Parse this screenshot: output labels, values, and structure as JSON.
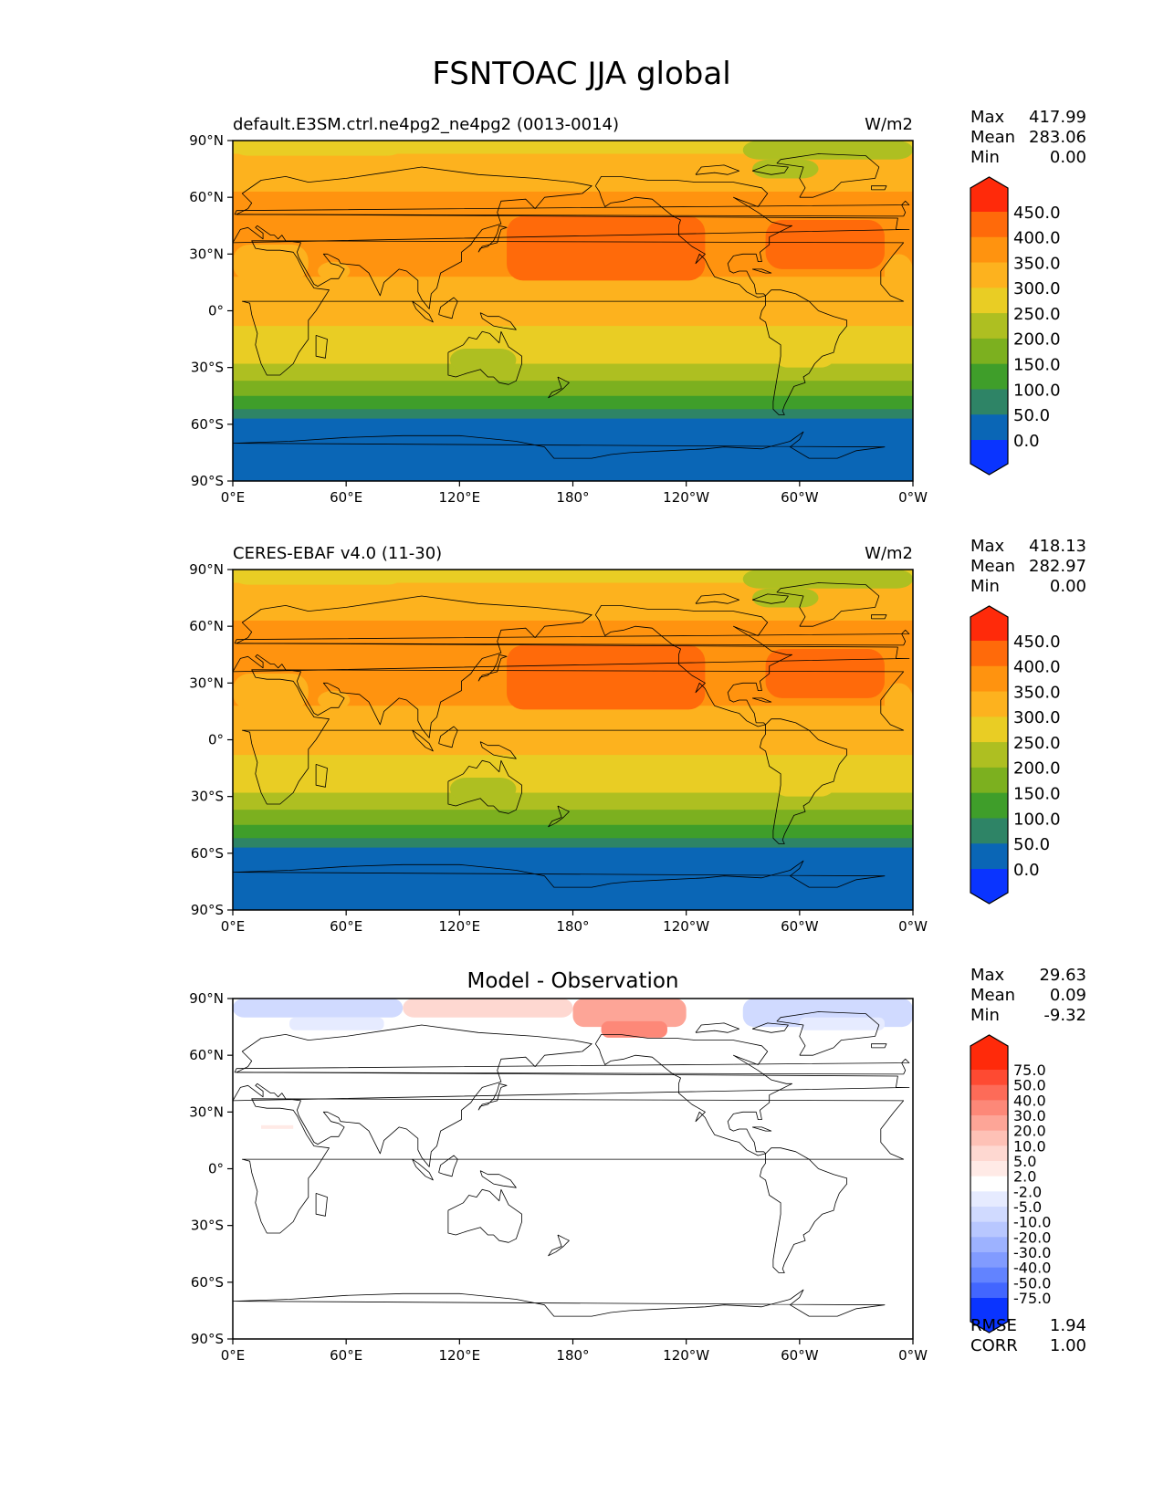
{
  "figure": {
    "title": "FSNTOAC JJA global"
  },
  "axes": {
    "xticks": [
      "0°E",
      "60°E",
      "120°E",
      "180°",
      "120°W",
      "60°W",
      "0°W"
    ],
    "yticks": [
      "90°N",
      "60°N",
      "30°N",
      "0°",
      "30°S",
      "60°S",
      "90°S"
    ]
  },
  "panels": [
    {
      "id": "test",
      "title_left": "default.E3SM.ctrl.ne4pg2_ne4pg2 (0013-0014)",
      "title_center": "",
      "units": "W/m2",
      "stats": [
        {
          "label": "Max",
          "value": "417.99"
        },
        {
          "label": "Mean",
          "value": "283.06"
        },
        {
          "label": "Min",
          "value": "0.00"
        }
      ],
      "extra_stats": []
    },
    {
      "id": "reference",
      "title_left": "CERES-EBAF v4.0 (11-30)",
      "title_center": "",
      "units": "W/m2",
      "stats": [
        {
          "label": "Max",
          "value": "418.13"
        },
        {
          "label": "Mean",
          "value": "282.97"
        },
        {
          "label": "Min",
          "value": "0.00"
        }
      ],
      "extra_stats": []
    },
    {
      "id": "difference",
      "title_left": "",
      "title_center": "Model - Observation",
      "units": "",
      "stats": [
        {
          "label": "Max",
          "value": "29.63"
        },
        {
          "label": "Mean",
          "value": "0.09"
        },
        {
          "label": "Min",
          "value": "-9.32"
        }
      ],
      "extra_stats": [
        {
          "label": "RMSE",
          "value": "1.94"
        },
        {
          "label": "CORR",
          "value": "1.00"
        }
      ]
    }
  ],
  "colorbars": {
    "field": {
      "levels": [
        "450.0",
        "400.0",
        "350.0",
        "300.0",
        "250.0",
        "200.0",
        "150.0",
        "100.0",
        "50.0",
        "0.0"
      ],
      "colors": [
        "#ff2a0a",
        "#ff6a0a",
        "#ff930f",
        "#fdb21e",
        "#e9cd24",
        "#aebf21",
        "#7cb01f",
        "#3f9e2a",
        "#2e8466",
        "#0a66b6",
        "#0a34ff"
      ]
    },
    "diff": {
      "levels": [
        "75.0",
        "50.0",
        "40.0",
        "30.0",
        "20.0",
        "10.0",
        "5.0",
        "2.0",
        "-2.0",
        "-5.0",
        "-10.0",
        "-20.0",
        "-30.0",
        "-40.0",
        "-50.0",
        "-75.0"
      ],
      "colors": [
        "#ff2a0a",
        "#fe4a32",
        "#fd6b58",
        "#fd8878",
        "#fda597",
        "#fec1b6",
        "#fed8d1",
        "#ffeae6",
        "#ffffff",
        "#e6ebff",
        "#d0daff",
        "#b8c7ff",
        "#9db2ff",
        "#819bff",
        "#6283ff",
        "#4266ff",
        "#0a34ff"
      ]
    }
  },
  "chart_data": [
    {
      "type": "heatmap",
      "title": "default.E3SM.ctrl.ne4pg2_ne4pg2 (0013-0014)",
      "units": "W/m2",
      "xlabel": "",
      "ylabel": "",
      "xlim": [
        0,
        360
      ],
      "ylim": [
        -90,
        90
      ],
      "zonal_profile": {
        "lat": [
          90,
          80,
          70,
          60,
          50,
          40,
          30,
          20,
          10,
          0,
          -10,
          -20,
          -30,
          -40,
          -50,
          -60,
          -70,
          -80,
          -90
        ],
        "value": [
          265,
          285,
          315,
          325,
          345,
          370,
          375,
          360,
          335,
          320,
          300,
          270,
          230,
          180,
          120,
          70,
          40,
          20,
          0
        ]
      },
      "stats": {
        "max": 417.99,
        "mean": 283.06,
        "min": 0.0
      }
    },
    {
      "type": "heatmap",
      "title": "CERES-EBAF v4.0 (11-30)",
      "units": "W/m2",
      "xlabel": "",
      "ylabel": "",
      "xlim": [
        0,
        360
      ],
      "ylim": [
        -90,
        90
      ],
      "zonal_profile": {
        "lat": [
          90,
          80,
          70,
          60,
          50,
          40,
          30,
          20,
          10,
          0,
          -10,
          -20,
          -30,
          -40,
          -50,
          -60,
          -70,
          -80,
          -90
        ],
        "value": [
          255,
          280,
          315,
          325,
          345,
          370,
          375,
          360,
          335,
          320,
          300,
          270,
          230,
          180,
          120,
          70,
          40,
          20,
          0
        ]
      },
      "stats": {
        "max": 418.13,
        "mean": 282.97,
        "min": 0.0
      }
    },
    {
      "type": "heatmap",
      "title": "Model - Observation",
      "units": "",
      "xlabel": "",
      "ylabel": "",
      "xlim": [
        0,
        360
      ],
      "ylim": [
        -90,
        90
      ],
      "anomalies": [
        {
          "lon": [
            180,
            240
          ],
          "lat": [
            75,
            90
          ],
          "value": 25
        },
        {
          "lon": [
            90,
            180
          ],
          "lat": [
            80,
            90
          ],
          "value": 8
        },
        {
          "lon": [
            0,
            90
          ],
          "lat": [
            80,
            90
          ],
          "value": -10
        },
        {
          "lon": [
            270,
            360
          ],
          "lat": [
            75,
            90
          ],
          "value": -10
        }
      ],
      "stats": {
        "max": 29.63,
        "mean": 0.09,
        "min": -9.32,
        "rmse": 1.94,
        "corr": 1.0
      }
    }
  ]
}
